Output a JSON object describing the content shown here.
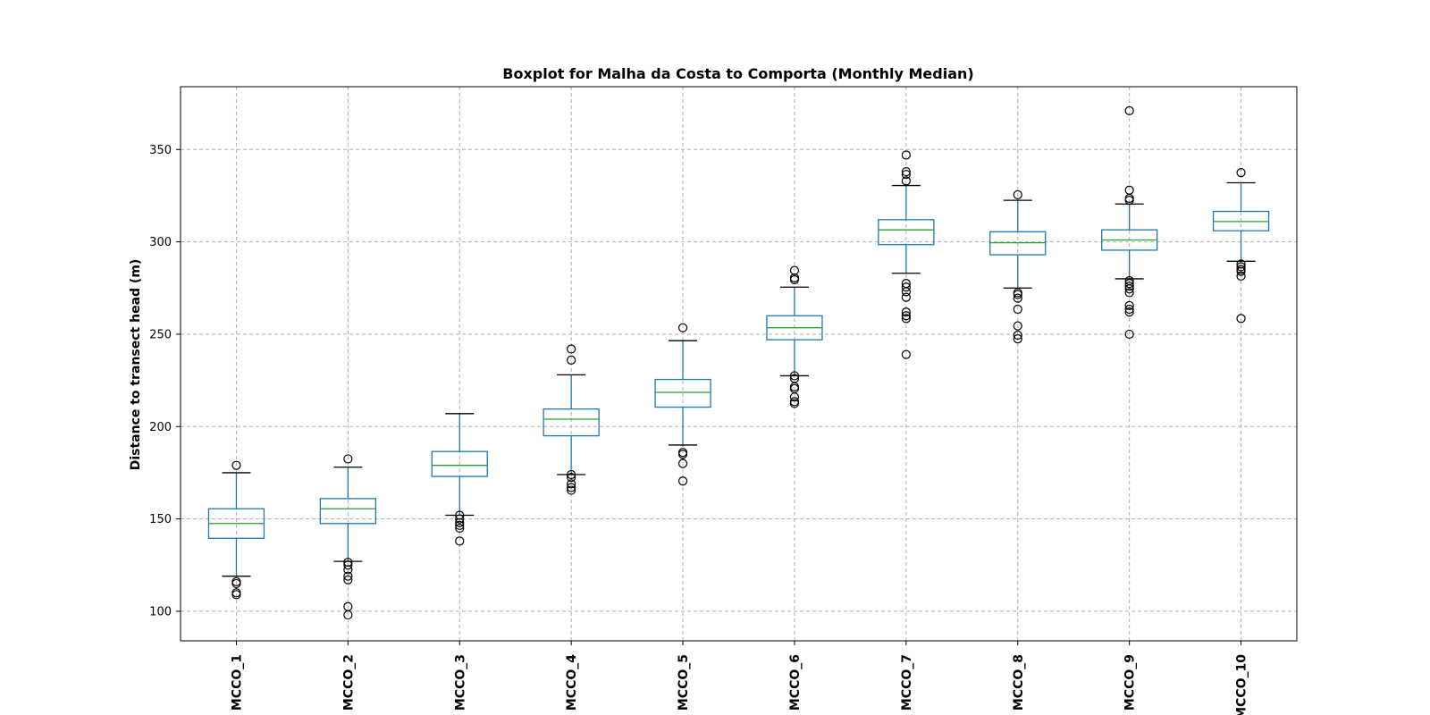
{
  "chart_data": {
    "type": "boxplot",
    "title": "Boxplot for Malha da Costa to Comporta (Monthly Median)",
    "ylabel": "Distance to transect head (m)",
    "xlabel": "",
    "ylim": [
      84,
      384
    ],
    "yticks": [
      100,
      150,
      200,
      250,
      300,
      350
    ],
    "grid": true,
    "categories": [
      "MCCO_1",
      "MCCO_2",
      "MCCO_3",
      "MCCO_4",
      "MCCO_5",
      "MCCO_6",
      "MCCO_7",
      "MCCO_8",
      "MCCO_9",
      "MCCO_10"
    ],
    "boxes": [
      {
        "whislo": 119,
        "q1": 139.5,
        "med": 147.5,
        "q3": 155.5,
        "whishi": 175,
        "fliers": [
          179,
          116,
          115,
          110,
          109
        ]
      },
      {
        "whislo": 127,
        "q1": 147.5,
        "med": 155.5,
        "q3": 161,
        "whishi": 178,
        "fliers": [
          182.5,
          126.5,
          125,
          122.5,
          119,
          117,
          102.5,
          98
        ]
      },
      {
        "whislo": 152,
        "q1": 173,
        "med": 179,
        "q3": 186.5,
        "whishi": 207,
        "fliers": [
          152,
          150,
          148,
          146.5,
          145,
          138
        ]
      },
      {
        "whislo": 174,
        "q1": 195,
        "med": 204,
        "q3": 209.5,
        "whishi": 228,
        "fliers": [
          242,
          236,
          174,
          172.5,
          169,
          167,
          165.5
        ]
      },
      {
        "whislo": 190,
        "q1": 210.5,
        "med": 218.5,
        "q3": 225.5,
        "whishi": 246.5,
        "fliers": [
          253.5,
          186,
          185,
          180,
          170.5
        ]
      },
      {
        "whislo": 227.5,
        "q1": 247,
        "med": 253.5,
        "q3": 260,
        "whishi": 275.5,
        "fliers": [
          284.5,
          280.5,
          279.5,
          227.5,
          226,
          221.5,
          220.5,
          216,
          213.5,
          212.5
        ]
      },
      {
        "whislo": 283,
        "q1": 298.5,
        "med": 306.5,
        "q3": 312,
        "whishi": 330.5,
        "fliers": [
          347,
          338,
          336.5,
          333,
          277.5,
          275.5,
          273,
          270,
          262,
          260,
          258.5,
          239
        ]
      },
      {
        "whislo": 275,
        "q1": 293,
        "med": 299.5,
        "q3": 305.5,
        "whishi": 322.5,
        "fliers": [
          325.5,
          272.5,
          271.5,
          269.5,
          263.5,
          254.5,
          249.5,
          247.5
        ]
      },
      {
        "whislo": 280,
        "q1": 295.5,
        "med": 301,
        "q3": 306.5,
        "whishi": 320.5,
        "fliers": [
          371,
          328,
          323.5,
          322.5,
          279,
          277.5,
          276,
          274.5,
          272.5,
          265.5,
          263.5,
          262,
          250
        ]
      },
      {
        "whislo": 289.5,
        "q1": 306,
        "med": 311,
        "q3": 316.5,
        "whishi": 332,
        "fliers": [
          337.5,
          288,
          286.5,
          285,
          284,
          281.5,
          258.5
        ]
      }
    ],
    "colors": {
      "box": "#1f77b4",
      "median": "#2ca02c",
      "caps_fliers": "#000000",
      "grid": "#b0b0b0"
    }
  }
}
